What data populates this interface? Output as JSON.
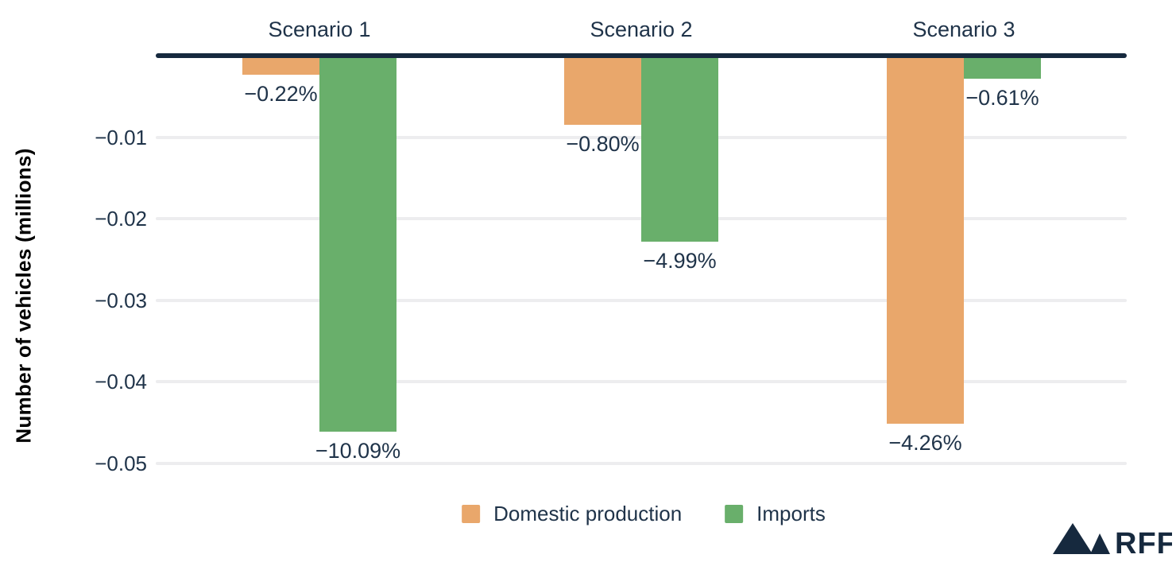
{
  "chart_data": {
    "type": "bar",
    "title": "",
    "xlabel": "",
    "ylabel": "Number of vehicles (millions)",
    "categories": [
      "Scenario 1",
      "Scenario 2",
      "Scenario 3"
    ],
    "series": [
      {
        "name": "Domestic production",
        "color": "#E9A76B",
        "values": [
          -0.0023,
          -0.0085,
          -0.0452
        ],
        "labels": [
          "−0.22%",
          "−0.80%",
          "−4.26%"
        ]
      },
      {
        "name": "Imports",
        "color": "#69AF6B",
        "values": [
          -0.0461,
          -0.0228,
          -0.0028
        ],
        "labels": [
          "−10.09%",
          "−4.99%",
          "−0.61%"
        ]
      }
    ],
    "y_ticks": [
      -0.01,
      -0.02,
      -0.03,
      -0.04,
      -0.05
    ],
    "y_tick_labels": [
      "−0.01",
      "−0.02",
      "−0.03",
      "−0.04",
      "−0.05"
    ],
    "ylim": [
      -0.055,
      0
    ],
    "grid": true,
    "legend_position": "bottom"
  },
  "colors": {
    "bar_orange": "#E9A76B",
    "bar_green": "#69AF6B",
    "axis_line": "#16293E",
    "gridline": "#EDEDEF",
    "text_navy": "#1F3349",
    "axis_title_black": "#000000",
    "logo_navy": "#16293E",
    "background": "#FFFFFF"
  },
  "branding": {
    "logo_text": "RFF",
    "logo_icon": "mountains-icon"
  }
}
